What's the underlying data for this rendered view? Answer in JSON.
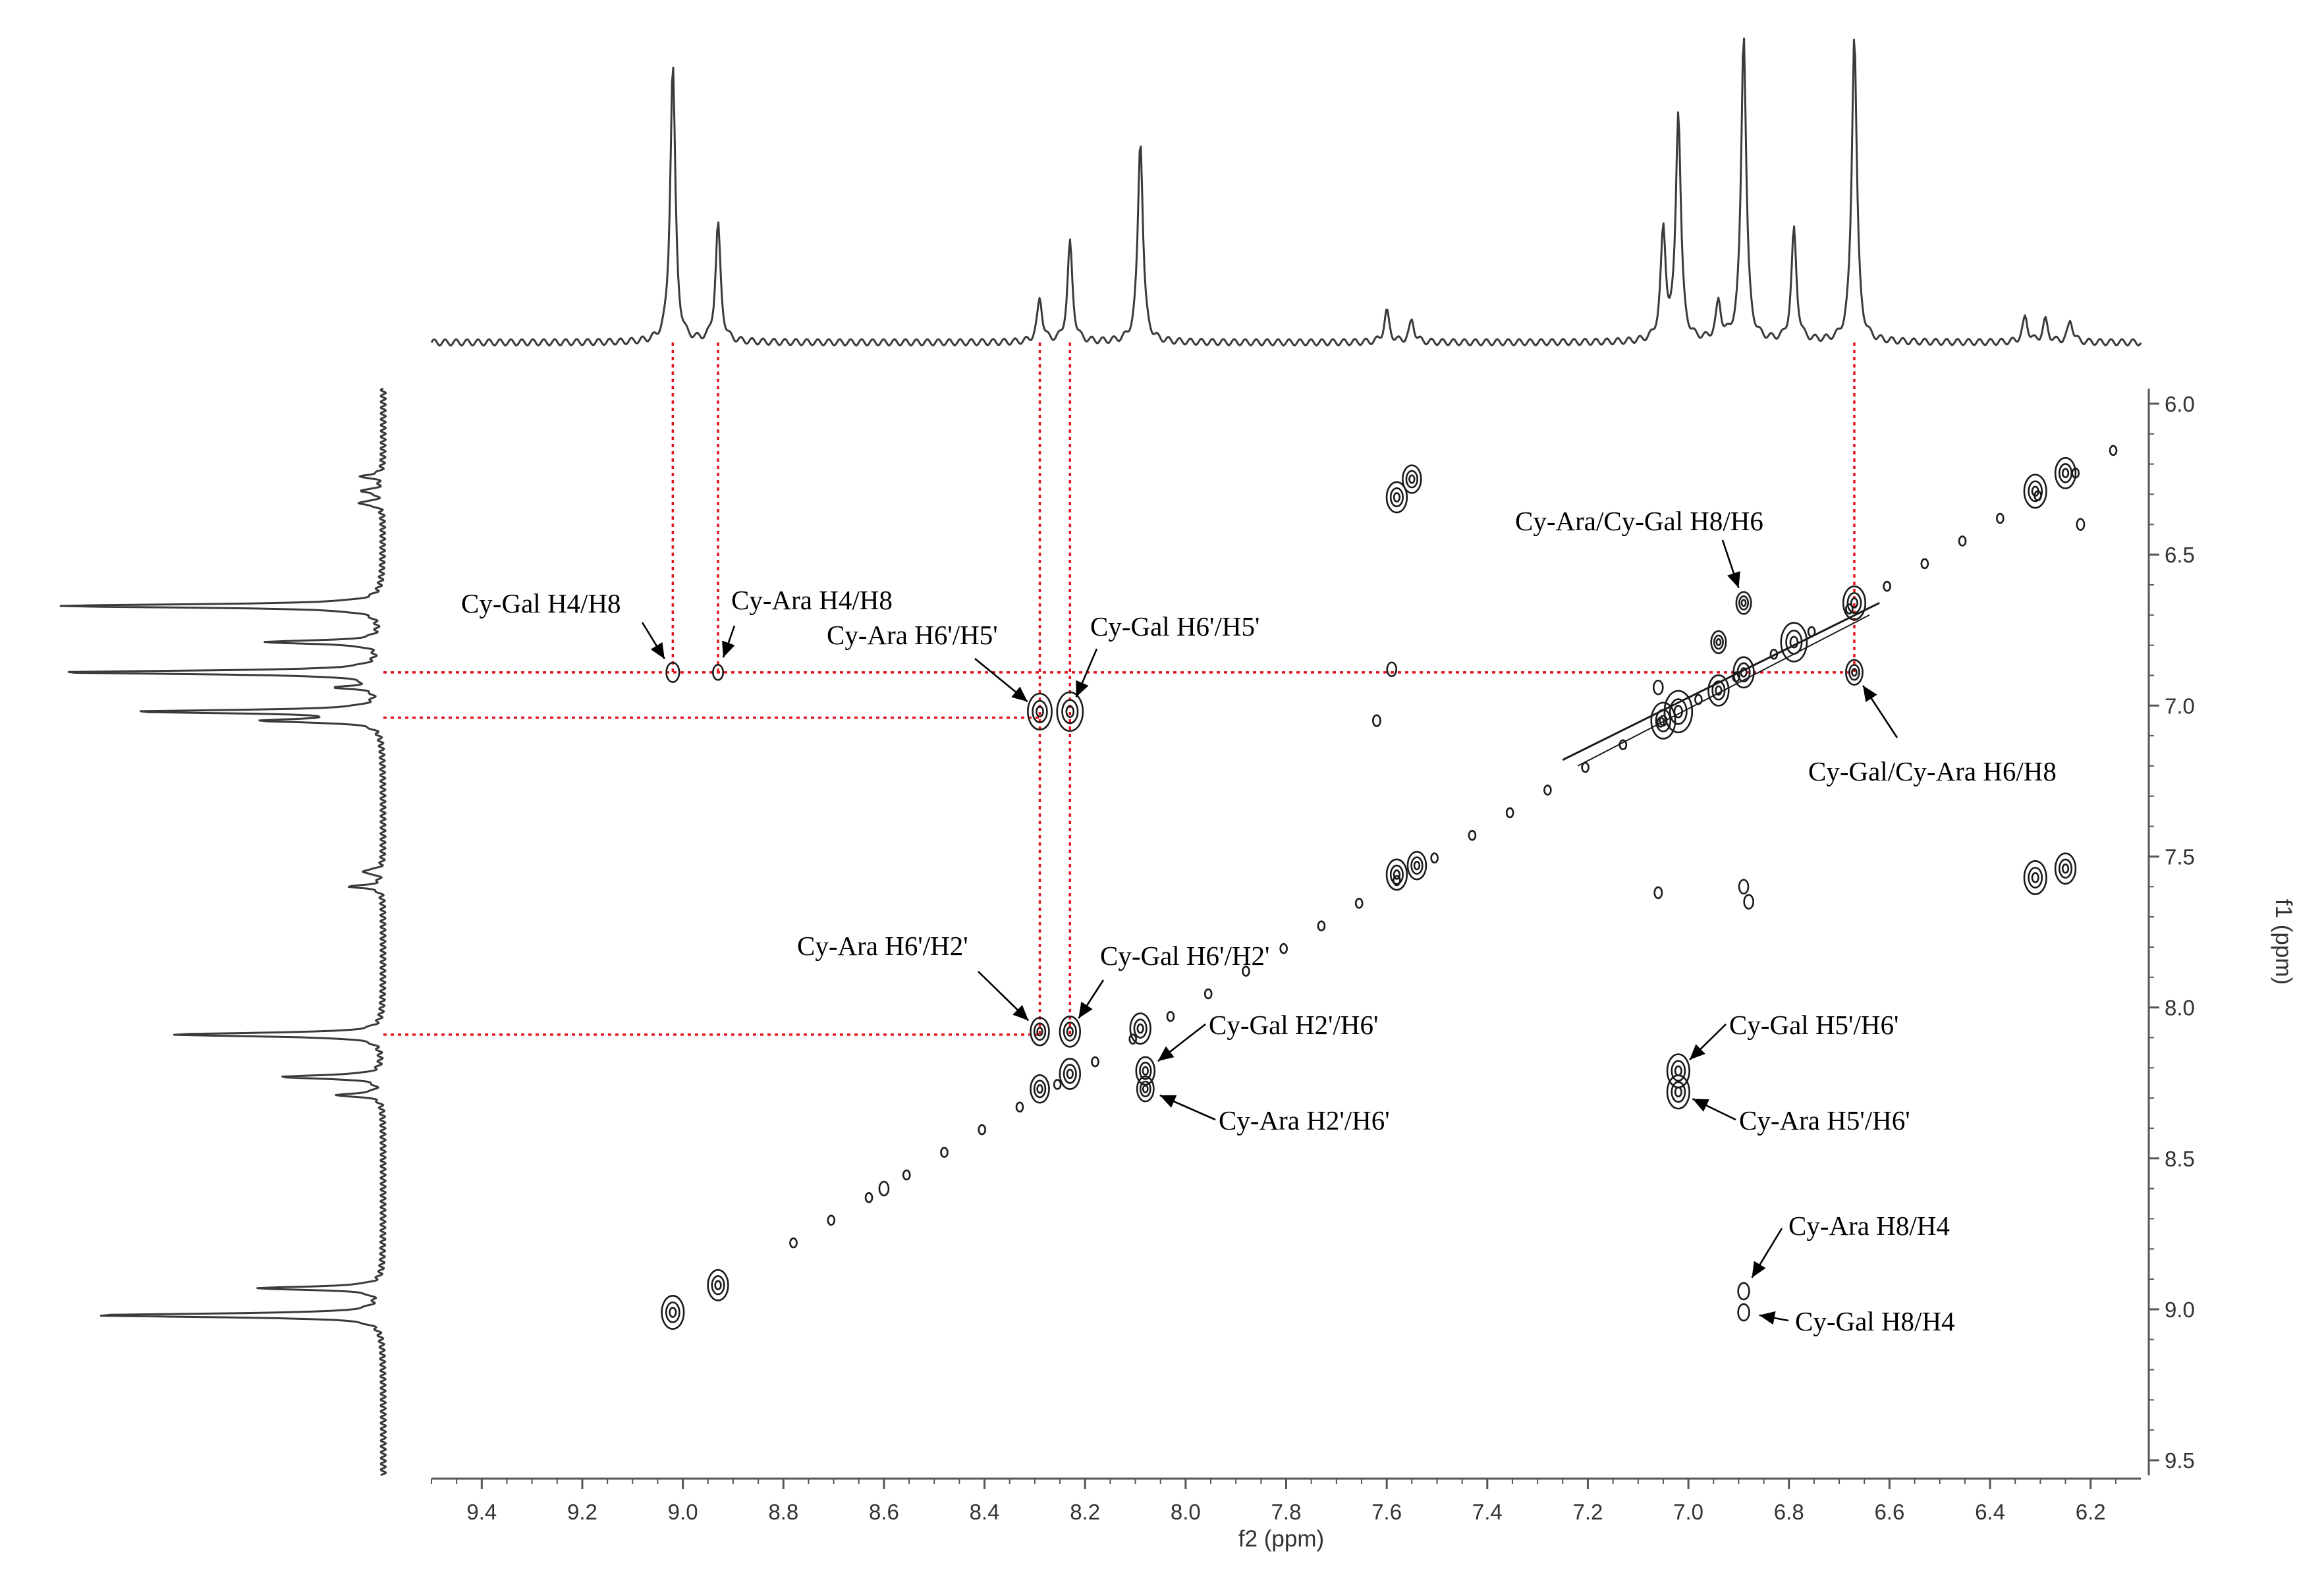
{
  "chart_data": {
    "type": "scatter",
    "subtype": "2D NMR COSY contour spectrum with 1D projections",
    "xlabel": "f2 (ppm)",
    "ylabel": "f1 (ppm)",
    "xlim": [
      9.5,
      6.1
    ],
    "ylim": [
      5.95,
      9.55
    ],
    "x_ticks": [
      "9.4",
      "9.2",
      "9.0",
      "8.8",
      "8.6",
      "8.4",
      "8.2",
      "8.0",
      "7.8",
      "7.6",
      "7.4",
      "7.2",
      "7.0",
      "6.8",
      "6.6",
      "6.4",
      "6.2"
    ],
    "y_ticks": [
      "6.0",
      "6.5",
      "7.0",
      "7.5",
      "8.0",
      "8.5",
      "9.0",
      "9.5"
    ],
    "colors": {
      "contour": "#1a1a1a",
      "guide": "#e0141e",
      "spectrum": "#3a3a3a",
      "axis": "#555555"
    },
    "projection_peaks": [
      {
        "ppm": 9.02,
        "height": 0.9
      },
      {
        "ppm": 8.93,
        "height": 0.38
      },
      {
        "ppm": 8.29,
        "height": 0.14
      },
      {
        "ppm": 8.23,
        "height": 0.32
      },
      {
        "ppm": 8.09,
        "height": 0.66
      },
      {
        "ppm": 7.6,
        "height": 0.1
      },
      {
        "ppm": 7.55,
        "height": 0.07
      },
      {
        "ppm": 7.05,
        "height": 0.35
      },
      {
        "ppm": 7.02,
        "height": 0.74
      },
      {
        "ppm": 6.94,
        "height": 0.12
      },
      {
        "ppm": 6.89,
        "height": 1.0
      },
      {
        "ppm": 6.79,
        "height": 0.36
      },
      {
        "ppm": 6.67,
        "height": 1.0
      },
      {
        "ppm": 6.33,
        "height": 0.08
      },
      {
        "ppm": 6.29,
        "height": 0.07
      },
      {
        "ppm": 6.24,
        "height": 0.07
      }
    ],
    "cross_peaks": [
      {
        "f2": 9.02,
        "f1": 6.89,
        "size": 0.7
      },
      {
        "f2": 8.93,
        "f1": 6.89,
        "size": 0.55
      },
      {
        "f2": 8.29,
        "f1": 7.02,
        "size": 1.3
      },
      {
        "f2": 8.23,
        "f1": 7.02,
        "size": 1.4
      },
      {
        "f2": 8.29,
        "f1": 8.08,
        "size": 1.0
      },
      {
        "f2": 8.23,
        "f1": 8.08,
        "size": 1.1
      },
      {
        "f2": 8.08,
        "f1": 8.21,
        "size": 1.0
      },
      {
        "f2": 8.08,
        "f1": 8.27,
        "size": 0.9
      },
      {
        "f2": 8.29,
        "f1": 8.27,
        "size": 1.0
      },
      {
        "f2": 8.23,
        "f1": 8.22,
        "size": 1.1
      },
      {
        "f2": 8.09,
        "f1": 8.07,
        "size": 1.1
      },
      {
        "f2": 7.02,
        "f1": 8.21,
        "size": 1.2
      },
      {
        "f2": 7.02,
        "f1": 8.28,
        "size": 1.2
      },
      {
        "f2": 6.89,
        "f1": 8.94,
        "size": 0.6
      },
      {
        "f2": 6.89,
        "f1": 9.01,
        "size": 0.6
      },
      {
        "f2": 6.89,
        "f1": 6.66,
        "size": 0.8
      },
      {
        "f2": 6.67,
        "f1": 6.89,
        "size": 0.9
      },
      {
        "f2": 6.67,
        "f1": 6.66,
        "size": 1.2
      },
      {
        "f2": 9.02,
        "f1": 9.01,
        "size": 1.2
      },
      {
        "f2": 8.93,
        "f1": 8.92,
        "size": 1.1
      },
      {
        "f2": 7.02,
        "f1": 7.02,
        "size": 1.5
      },
      {
        "f2": 7.05,
        "f1": 7.05,
        "size": 1.3
      },
      {
        "f2": 6.94,
        "f1": 6.95,
        "size": 1.1
      },
      {
        "f2": 6.89,
        "f1": 6.89,
        "size": 1.1
      },
      {
        "f2": 6.79,
        "f1": 6.79,
        "size": 1.4
      },
      {
        "f2": 6.94,
        "f1": 6.79,
        "size": 0.8
      },
      {
        "f2": 7.58,
        "f1": 6.31,
        "size": 1.1
      },
      {
        "f2": 7.55,
        "f1": 6.25,
        "size": 1.0
      },
      {
        "f2": 7.58,
        "f1": 7.56,
        "size": 1.1
      },
      {
        "f2": 7.54,
        "f1": 7.53,
        "size": 1.0
      },
      {
        "f2": 6.31,
        "f1": 6.29,
        "size": 1.2
      },
      {
        "f2": 6.25,
        "f1": 6.23,
        "size": 1.1
      },
      {
        "f2": 6.31,
        "f1": 7.57,
        "size": 1.2
      },
      {
        "f2": 6.25,
        "f1": 7.54,
        "size": 1.1
      },
      {
        "f2": 7.59,
        "f1": 6.88,
        "size": 0.5
      },
      {
        "f2": 6.89,
        "f1": 7.6,
        "size": 0.5
      },
      {
        "f2": 6.88,
        "f1": 7.65,
        "size": 0.5
      },
      {
        "f2": 7.62,
        "f1": 7.05,
        "size": 0.4
      },
      {
        "f2": 7.06,
        "f1": 7.62,
        "size": 0.4
      },
      {
        "f2": 8.6,
        "f1": 8.6,
        "size": 0.5
      },
      {
        "f2": 7.06,
        "f1": 6.94,
        "size": 0.5
      },
      {
        "f2": 6.22,
        "f1": 6.4,
        "size": 0.4
      }
    ],
    "annotations": [
      {
        "text": "Cy-Gal H4/H8",
        "f2": 9.02,
        "f1": 6.89
      },
      {
        "text": "Cy-Ara H4/H8",
        "f2": 8.93,
        "f1": 6.89
      },
      {
        "text": "Cy-Ara H6'/H5'",
        "f2": 8.29,
        "f1": 7.02
      },
      {
        "text": "Cy-Gal H6'/H5'",
        "f2": 8.23,
        "f1": 7.02
      },
      {
        "text": "Cy-Ara/Cy-Gal H8/H6",
        "f2": 6.89,
        "f1": 6.66
      },
      {
        "text": "Cy-Gal/Cy-Ara H6/H8",
        "f2": 6.67,
        "f1": 6.89
      },
      {
        "text": "Cy-Ara H6'/H2'",
        "f2": 8.29,
        "f1": 8.08
      },
      {
        "text": "Cy-Gal H6'/H2'",
        "f2": 8.23,
        "f1": 8.08
      },
      {
        "text": "Cy-Gal H2'/H6'",
        "f2": 8.08,
        "f1": 8.21
      },
      {
        "text": "Cy-Ara H2'/H6'",
        "f2": 8.08,
        "f1": 8.27
      },
      {
        "text": "Cy-Gal H5'/H6'",
        "f2": 7.02,
        "f1": 8.21
      },
      {
        "text": "Cy-Ara H5'/H6'",
        "f2": 7.02,
        "f1": 8.28
      },
      {
        "text": "Cy-Ara H8/H4",
        "f2": 6.89,
        "f1": 8.94
      },
      {
        "text": "Cy-Gal H8/H4",
        "f2": 6.89,
        "f1": 9.01
      }
    ],
    "guide_lines": {
      "vertical_f2": [
        9.02,
        8.93,
        8.29,
        8.23,
        6.67
      ],
      "horizontal_f1": [
        6.89,
        7.04,
        8.09
      ]
    }
  }
}
